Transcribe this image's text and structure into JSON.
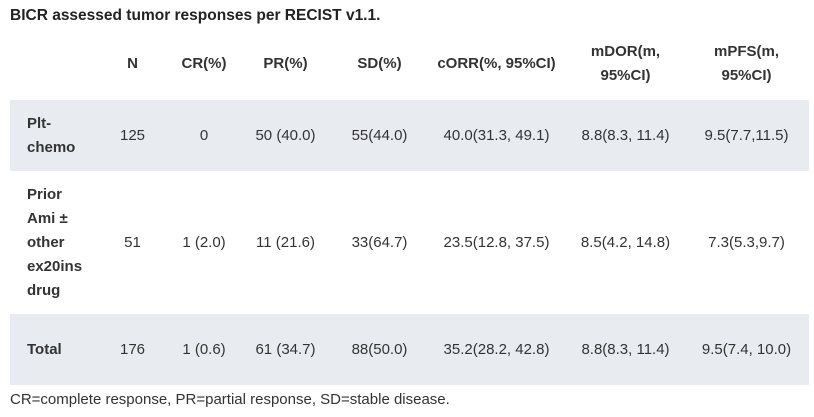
{
  "title": "BICR assessed tumor responses per RECIST v1.1.",
  "headers": [
    "",
    "N",
    "CR(%)",
    "PR(%)",
    "SD(%)",
    "cORR(%, 95%CI)",
    "mDOR(m, 95%CI)",
    "mPFS(m, 95%CI)"
  ],
  "rows": [
    {
      "label": "Plt-chemo",
      "cells": [
        "125",
        "0",
        "50 (40.0)",
        "55(44.0)",
        "40.0(31.3, 49.1)",
        "8.8(8.3, 11.4)",
        "9.5(7.7,11.5)"
      ]
    },
    {
      "label": "Prior Ami ± other ex20ins drug",
      "cells": [
        "51",
        "1 (2.0)",
        "11 (21.6)",
        "33(64.7)",
        "23.5(12.8, 37.5)",
        "8.5(4.2, 14.8)",
        "7.3(5.3,9.7)"
      ]
    },
    {
      "label": "Total",
      "cells": [
        "176",
        "1 (0.6)",
        "61 (34.7)",
        "88(50.0)",
        "35.2(28.2, 42.8)",
        "8.8(8.3, 11.4)",
        "9.5(7.4, 10.0)"
      ]
    }
  ],
  "footnote": "CR=complete response, PR=partial response, SD=stable disease.",
  "colors": {
    "row_shade": "#e8ecf1",
    "text": "#333333"
  }
}
